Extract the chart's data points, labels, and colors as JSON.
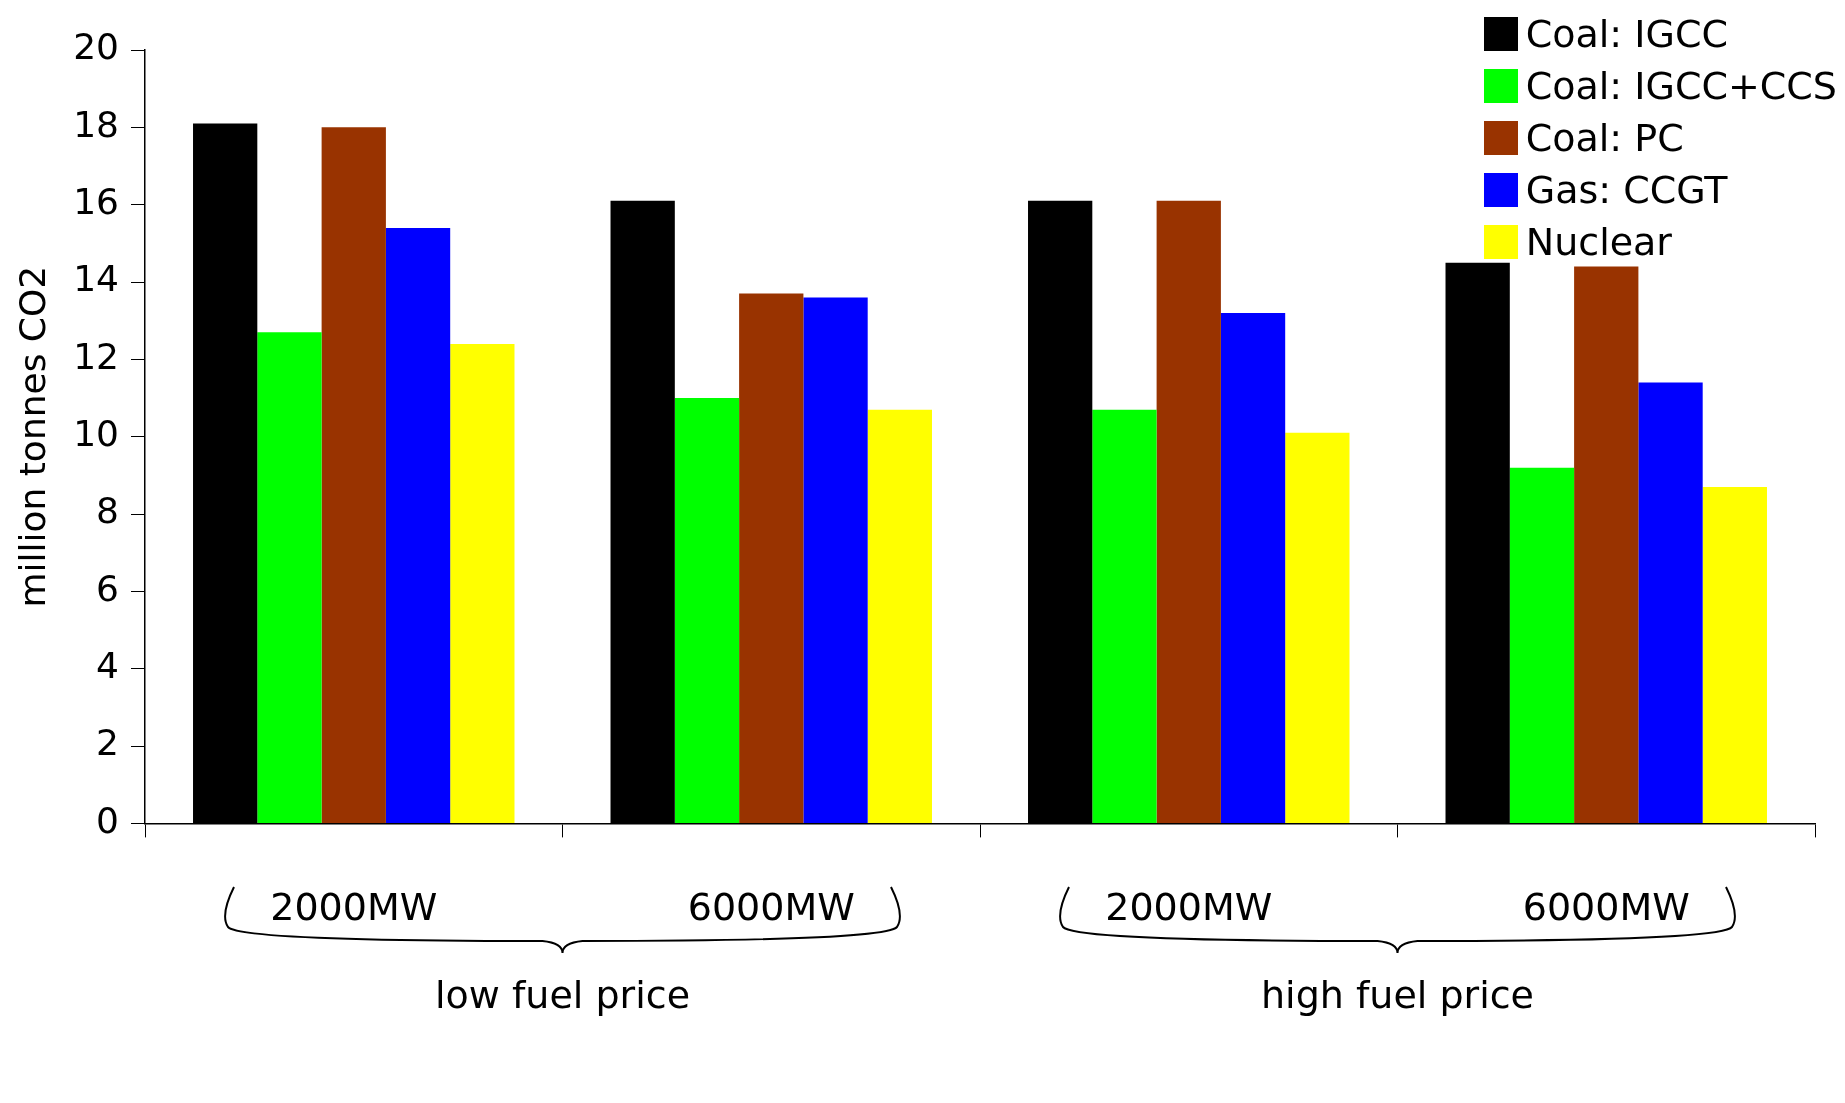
{
  "chart_data": {
    "type": "bar",
    "ylabel": "million tonnes CO2",
    "categories": [
      "2000MW",
      "6000MW",
      "2000MW",
      "6000MW"
    ],
    "series": [
      {
        "name": "Coal: IGCC",
        "color": "#000000",
        "values": [
          18.1,
          16.1,
          16.1,
          14.5
        ]
      },
      {
        "name": "Coal: IGCC+CCS",
        "color": "#00ff00",
        "values": [
          12.7,
          11.0,
          10.7,
          9.2
        ]
      },
      {
        "name": "Coal: PC",
        "color": "#993300",
        "values": [
          18.0,
          13.7,
          16.1,
          14.4
        ]
      },
      {
        "name": "Gas: CCGT",
        "color": "#0000ff",
        "values": [
          15.4,
          13.6,
          13.2,
          11.4
        ]
      },
      {
        "name": "Nuclear",
        "color": "#ffff00",
        "values": [
          12.4,
          10.7,
          10.1,
          8.7
        ]
      }
    ],
    "ylim": [
      0,
      20
    ],
    "yticks": [
      0,
      2,
      4,
      6,
      8,
      10,
      12,
      14,
      16,
      18,
      20
    ],
    "grid": false,
    "legend": "top right",
    "annotations": [
      "low fuel price",
      "high fuel price"
    ]
  }
}
